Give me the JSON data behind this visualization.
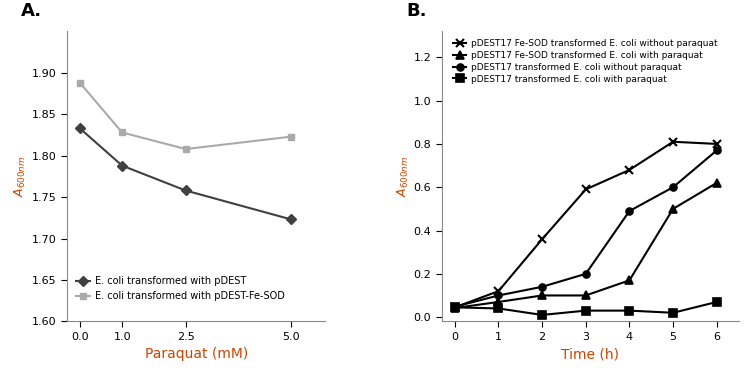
{
  "panel_A": {
    "title": "A.",
    "xlabel": "Paraquat (mM)",
    "ylabel_main": "A",
    "ylabel_sub": "600nm",
    "xlim": [
      -0.3,
      5.8
    ],
    "ylim": [
      1.6,
      1.95
    ],
    "yticks": [
      1.6,
      1.65,
      1.7,
      1.75,
      1.8,
      1.85,
      1.9
    ],
    "xticks": [
      0,
      1,
      2.5,
      5
    ],
    "xlabel_color": "#cc4400",
    "ylabel_color": "#cc4400",
    "series": [
      {
        "label": "E. coli transformed with pDEST",
        "x": [
          0,
          1,
          2.5,
          5
        ],
        "y": [
          1.833,
          1.788,
          1.758,
          1.723
        ],
        "color": "#404040",
        "marker": "D",
        "markersize": 5,
        "linewidth": 1.5,
        "markerfacecolor": "#404040"
      },
      {
        "label": "E. coli transformed with pDEST-Fe-SOD",
        "x": [
          0,
          1,
          2.5,
          5
        ],
        "y": [
          1.888,
          1.828,
          1.808,
          1.823
        ],
        "color": "#aaaaaa",
        "marker": "s",
        "markersize": 5,
        "linewidth": 1.5,
        "markerfacecolor": "#aaaaaa"
      }
    ]
  },
  "panel_B": {
    "title": "B.",
    "xlabel": "Time (h)",
    "ylabel_main": "A",
    "ylabel_sub": "600nm",
    "xlim": [
      -0.3,
      6.5
    ],
    "ylim": [
      -0.02,
      1.32
    ],
    "yticks": [
      0,
      0.2,
      0.4,
      0.6,
      0.8,
      1.0,
      1.2
    ],
    "xticks": [
      0,
      1,
      2,
      3,
      4,
      5,
      6
    ],
    "xlabel_color": "#cc4400",
    "ylabel_color": "#cc4400",
    "series": [
      {
        "label": "pDEST17 Fe-SOD transformed E. coli without paraquat",
        "x": [
          0,
          1,
          2,
          3,
          4,
          5,
          6
        ],
        "y": [
          0.045,
          0.12,
          0.36,
          0.59,
          0.68,
          0.81,
          0.8
        ],
        "color": "#000000",
        "marker": "x",
        "markersize": 6,
        "linewidth": 1.5,
        "markeredgewidth": 1.5,
        "markerfacecolor": "none"
      },
      {
        "label": "pDEST17 Fe-SOD transformed E. coli with paraquat",
        "x": [
          0,
          1,
          2,
          3,
          4,
          5,
          6
        ],
        "y": [
          0.042,
          0.07,
          0.1,
          0.1,
          0.17,
          0.5,
          0.62
        ],
        "color": "#000000",
        "marker": "^",
        "markersize": 6,
        "linewidth": 1.5,
        "markeredgewidth": 1.2,
        "markerfacecolor": "#000000"
      },
      {
        "label": "pDEST17 transformed E. coli without paraquat",
        "x": [
          0,
          1,
          2,
          3,
          4,
          5,
          6
        ],
        "y": [
          0.048,
          0.1,
          0.14,
          0.2,
          0.49,
          0.6,
          0.77
        ],
        "color": "#000000",
        "marker": "o",
        "markersize": 5,
        "linewidth": 1.5,
        "markeredgewidth": 1.2,
        "markerfacecolor": "#000000"
      },
      {
        "label": "pDEST17 transformed E. coli with paraquat",
        "x": [
          0,
          1,
          2,
          3,
          4,
          5,
          6
        ],
        "y": [
          0.045,
          0.04,
          0.01,
          0.03,
          0.03,
          0.02,
          0.07
        ],
        "color": "#000000",
        "marker": "s",
        "markersize": 6,
        "linewidth": 1.5,
        "markeredgewidth": 1.2,
        "markerfacecolor": "#000000"
      }
    ]
  }
}
